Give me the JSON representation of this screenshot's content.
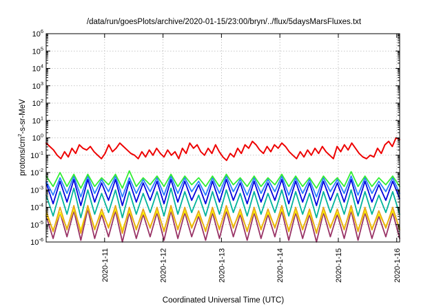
{
  "chart_data": {
    "type": "line",
    "title": "/data/run/goesPlots/archive/2020-01-15/23:00/bryn/../flux/5daysMarsFluxes.txt",
    "xlabel": "Coordinated Universal Time (UTC)",
    "ylabel": "protons/cm2-s-sr-MeV",
    "ylabel_parts": {
      "base": "protons/cm",
      "sup": "2",
      "rest": "-s-sr-MeV"
    },
    "x_range_days": [
      0,
      6.05
    ],
    "x_ticks": [
      {
        "label": "2020-1-11",
        "day": 1
      },
      {
        "label": "2020-1-12",
        "day": 2
      },
      {
        "label": "2020-1-13",
        "day": 3
      },
      {
        "label": "2020-1-14",
        "day": 4
      },
      {
        "label": "2020-1-15",
        "day": 5
      },
      {
        "label": "2020-1-16",
        "day": 6
      }
    ],
    "y_scale": "log",
    "ylim": [
      1e-06,
      1000000.0
    ],
    "y_ticks": [
      {
        "base": "10",
        "exp": "6",
        "value": 6
      },
      {
        "base": "10",
        "exp": "5",
        "value": 5
      },
      {
        "base": "10",
        "exp": "4",
        "value": 4
      },
      {
        "base": "10",
        "exp": "3",
        "value": 3
      },
      {
        "base": "10",
        "exp": "2",
        "value": 2
      },
      {
        "base": "10",
        "exp": "1",
        "value": 1
      },
      {
        "base": "10",
        "exp": "0",
        "value": 0
      },
      {
        "base": "10",
        "exp": "-1",
        "value": -1
      },
      {
        "base": "10",
        "exp": "-2",
        "value": -2
      },
      {
        "base": "10",
        "exp": "-3",
        "value": -3
      },
      {
        "base": "10",
        "exp": "-4",
        "value": -4
      },
      {
        "base": "10",
        "exp": "-5",
        "value": -5
      },
      {
        "base": "10",
        "exp": "-6",
        "value": -6
      }
    ],
    "grid": true,
    "series": [
      {
        "color": "#993366",
        "log10_values": [
          -4.5,
          -5.8,
          -4.3,
          -5.7,
          -4.2,
          -5.9,
          -4.1,
          -5.8,
          -4.4,
          -5.7,
          -4.2,
          -6.0,
          -4.3,
          -5.8,
          -4.4,
          -5.7,
          -4.3,
          -5.9,
          -4.2,
          -5.8,
          -4.3,
          -5.7,
          -4.5,
          -5.9,
          -4.3,
          -5.8,
          -4.2,
          -5.7,
          -4.4,
          -5.9,
          -4.3,
          -5.8,
          -4.4,
          -5.7,
          -4.2,
          -5.9,
          -4.3,
          -5.8,
          -4.4,
          -6.0,
          -4.3,
          -5.7,
          -4.4,
          -5.8,
          -4.2,
          -5.9,
          -4.3,
          -5.8,
          -4.5,
          -5.7,
          -4.3,
          -5.8
        ]
      },
      {
        "color": "#ffff00",
        "log10_values": [
          -4.4,
          -5.3,
          -4.3,
          -5.2,
          -4.1,
          -5.3,
          -4.0,
          -5.2,
          -4.3,
          -5.1,
          -4.1,
          -5.3,
          -4.2,
          -5.2,
          -4.3,
          -5.1,
          -4.2,
          -5.3,
          -4.1,
          -5.2,
          -4.2,
          -5.1,
          -4.4,
          -5.3,
          -4.2,
          -5.2,
          -4.1,
          -5.1,
          -4.3,
          -5.3,
          -4.2,
          -5.2,
          -4.3,
          -5.1,
          -4.1,
          -5.3,
          -4.2,
          -5.2,
          -4.3,
          -5.4,
          -4.2,
          -5.1,
          -4.3,
          -5.2,
          -4.1,
          -5.3,
          -4.2,
          -5.2,
          -4.4,
          -5.1,
          -4.2,
          -5.2
        ]
      },
      {
        "color": "#e6a817",
        "log10_values": [
          -4.2,
          -5.4,
          -4.0,
          -5.3,
          -3.9,
          -5.5,
          -3.9,
          -5.3,
          -4.1,
          -5.2,
          -3.9,
          -5.5,
          -4.0,
          -5.3,
          -4.1,
          -5.2,
          -4.0,
          -5.4,
          -3.9,
          -5.3,
          -4.0,
          -5.2,
          -4.2,
          -5.4,
          -4.0,
          -5.3,
          -3.9,
          -5.2,
          -4.1,
          -5.4,
          -4.0,
          -5.3,
          -4.1,
          -5.2,
          -3.9,
          -5.4,
          -4.0,
          -5.3,
          -4.1,
          -5.5,
          -4.0,
          -5.2,
          -4.1,
          -5.3,
          -3.9,
          -5.4,
          -4.0,
          -5.3,
          -4.2,
          -5.2,
          -4.0,
          -5.3
        ]
      },
      {
        "color": "#00b39b",
        "log10_values": [
          -3.3,
          -4.5,
          -3.1,
          -4.4,
          -2.9,
          -4.6,
          -3.0,
          -4.4,
          -3.2,
          -4.3,
          -3.0,
          -4.6,
          -3.1,
          -4.4,
          -3.2,
          -4.3,
          -3.1,
          -4.5,
          -2.9,
          -4.4,
          -3.1,
          -4.3,
          -3.3,
          -4.5,
          -3.1,
          -4.4,
          -3.0,
          -4.3,
          -3.2,
          -4.5,
          -3.1,
          -4.4,
          -3.2,
          -4.3,
          -3.0,
          -4.5,
          -3.1,
          -4.4,
          -3.2,
          -4.6,
          -3.1,
          -4.3,
          -3.2,
          -4.4,
          -3.0,
          -4.5,
          -3.1,
          -4.4,
          -3.3,
          -4.3,
          -3.1,
          -4.4
        ]
      },
      {
        "color": "#0000dd",
        "log10_values": [
          -2.6,
          -3.8,
          -2.5,
          -3.7,
          -2.4,
          -3.9,
          -2.4,
          -3.7,
          -2.6,
          -3.6,
          -2.4,
          -3.9,
          -2.5,
          -3.7,
          -2.6,
          -3.6,
          -2.5,
          -3.8,
          -2.4,
          -3.7,
          -2.5,
          -3.6,
          -2.7,
          -3.8,
          -2.5,
          -3.7,
          -2.4,
          -3.6,
          -2.6,
          -3.8,
          -2.5,
          -3.7,
          -2.6,
          -3.6,
          -2.4,
          -3.8,
          -2.5,
          -3.7,
          -2.6,
          -3.9,
          -2.5,
          -3.6,
          -2.6,
          -3.7,
          -2.4,
          -3.8,
          -2.5,
          -3.7,
          -2.7,
          -3.6,
          -2.5,
          -3.5
        ]
      },
      {
        "color": "#2a7fff",
        "log10_values": [
          -2.5,
          -3.3,
          -2.3,
          -3.2,
          -2.2,
          -3.4,
          -2.2,
          -3.2,
          -2.4,
          -3.1,
          -2.2,
          -3.4,
          -2.3,
          -3.2,
          -2.4,
          -3.1,
          -2.3,
          -3.3,
          -2.2,
          -3.2,
          -2.3,
          -3.1,
          -2.5,
          -3.3,
          -2.3,
          -3.2,
          -2.2,
          -3.1,
          -2.4,
          -3.3,
          -2.3,
          -3.2,
          -2.4,
          -3.1,
          -2.2,
          -3.3,
          -2.3,
          -3.2,
          -2.4,
          -3.4,
          -2.3,
          -3.1,
          -2.4,
          -3.2,
          -2.2,
          -3.3,
          -2.3,
          -3.2,
          -2.5,
          -3.1,
          -2.3,
          -3.2
        ]
      },
      {
        "color": "#33ee33",
        "log10_values": [
          -2.2,
          -2.8,
          -2.0,
          -2.8,
          -2.1,
          -2.9,
          -2.1,
          -2.8,
          -2.3,
          -2.7,
          -2.1,
          -2.9,
          -1.9,
          -2.8,
          -2.3,
          -2.7,
          -2.2,
          -2.8,
          -2.1,
          -2.8,
          -2.2,
          -2.7,
          -2.3,
          -2.8,
          -2.2,
          -2.8,
          -2.1,
          -2.7,
          -2.3,
          -2.8,
          -2.2,
          -2.8,
          -2.3,
          -2.7,
          -2.1,
          -2.8,
          -2.2,
          -2.8,
          -2.3,
          -2.9,
          -2.2,
          -2.7,
          -2.3,
          -2.8,
          -1.95,
          -2.8,
          -2.2,
          -2.8,
          -2.3,
          -2.7,
          -2.2,
          -2.8
        ]
      },
      {
        "color": "#ee0000",
        "log10_values": [
          -0.3,
          -0.5,
          -0.7,
          -1.0,
          -1.2,
          -0.8,
          -1.1,
          -0.6,
          -0.9,
          -0.4,
          -0.6,
          -0.7,
          -0.5,
          -0.8,
          -1.0,
          -1.2,
          -0.9,
          -0.4,
          -0.8,
          -0.6,
          -0.3,
          -0.5,
          -0.7,
          -0.9,
          -1.0,
          -1.2,
          -0.8,
          -1.1,
          -0.7,
          -1.0,
          -0.6,
          -0.9,
          -1.1,
          -0.7,
          -1.0,
          -0.8,
          -1.2,
          -0.6,
          -0.9,
          -0.3,
          -0.6,
          -0.4,
          -0.8,
          -1.0,
          -0.6,
          -0.9,
          -0.4,
          -0.8,
          -1.1,
          -1.3,
          -0.9,
          -1.1,
          -0.6,
          -0.9,
          -0.4,
          -0.6,
          -0.2,
          -0.4,
          -0.7,
          -0.9,
          -0.5,
          -0.8,
          -0.4,
          -0.6,
          -0.3,
          -0.5,
          -0.8,
          -1.0,
          -1.2,
          -0.8,
          -1.1,
          -0.7,
          -1.0,
          -0.6,
          -0.9,
          -0.5,
          -0.8,
          -1.0,
          -1.2,
          -0.5,
          -0.8,
          -0.4,
          -0.7,
          -0.3,
          -0.6,
          -0.9,
          -1.1,
          -1.2,
          -1.0,
          -1.1,
          -0.6,
          -0.9,
          -0.4,
          -0.2,
          -0.5,
          0.0,
          -0.1
        ]
      }
    ]
  }
}
